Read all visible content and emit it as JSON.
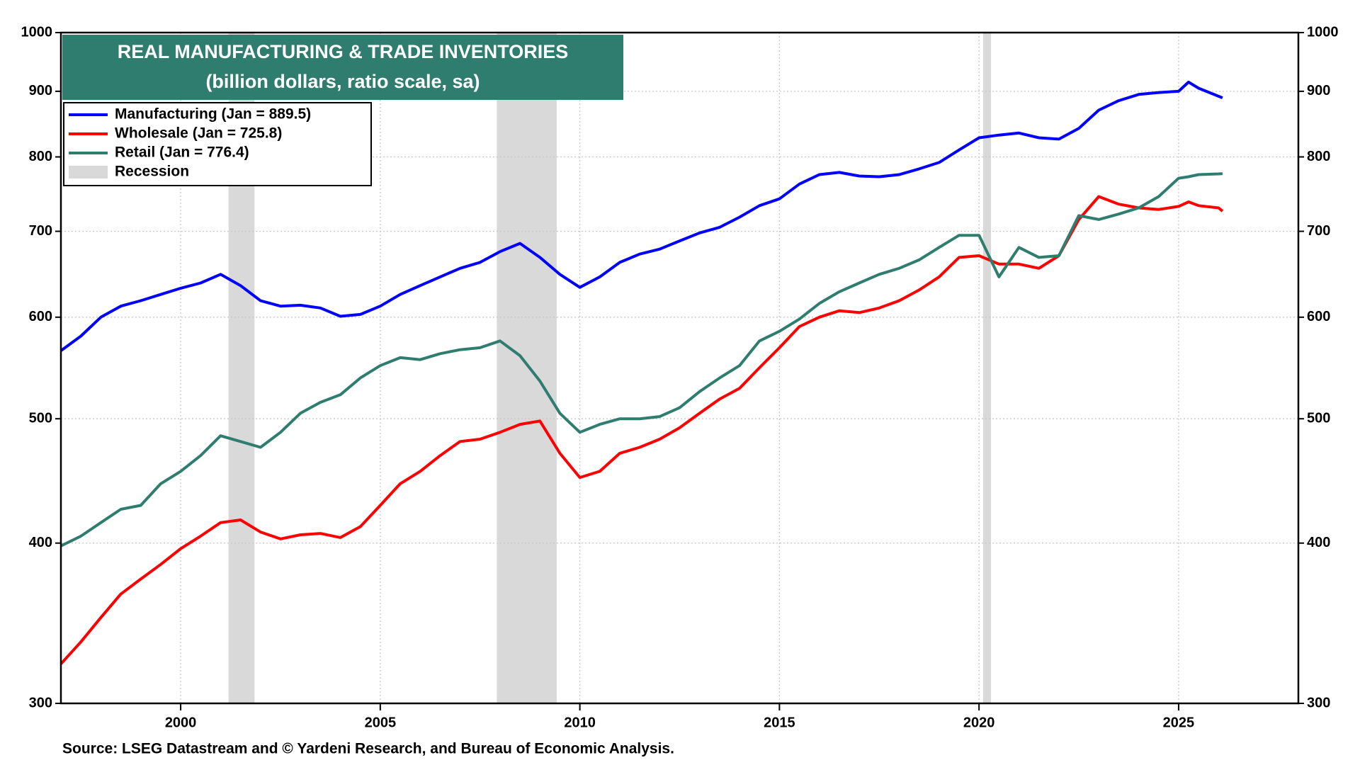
{
  "chart_data": {
    "type": "line",
    "title": "REAL MANUFACTURING & TRADE INVENTORIES",
    "subtitle": "(billion dollars, ratio scale, sa)",
    "source": "Source: LSEG Datastream and © Yardeni Research, and Bureau of Economic Analysis.",
    "log_scale": true,
    "grid": true,
    "xlim": [
      1997,
      2028
    ],
    "xticks": [
      2000,
      2005,
      2010,
      2015,
      2020,
      2025
    ],
    "ylim": [
      300,
      1000
    ],
    "yticks": [
      300,
      400,
      500,
      600,
      700,
      800,
      900,
      1000
    ],
    "y2lim": [
      300,
      1000
    ],
    "y2ticks": [
      300,
      400,
      500,
      600,
      700,
      800,
      900,
      1000
    ],
    "recession_name": "Recession",
    "recession_color": "#d9d9d9",
    "recessions": [
      [
        2001.2,
        2001.85
      ],
      [
        2007.92,
        2009.42
      ],
      [
        2020.1,
        2020.3
      ]
    ],
    "x": [
      1997,
      1997.5,
      1998,
      1998.5,
      1999,
      1999.5,
      2000,
      2000.5,
      2001,
      2001.5,
      2002,
      2002.5,
      2003,
      2003.5,
      2004,
      2004.5,
      2005,
      2005.5,
      2006,
      2006.5,
      2007,
      2007.5,
      2008,
      2008.5,
      2009,
      2009.5,
      2010,
      2010.5,
      2011,
      2011.5,
      2012,
      2012.5,
      2013,
      2013.5,
      2014,
      2014.5,
      2015,
      2015.5,
      2016,
      2016.5,
      2017,
      2017.5,
      2018,
      2018.5,
      2019,
      2019.5,
      2020,
      2020.5,
      2021,
      2021.5,
      2022,
      2022.5,
      2023,
      2023.5,
      2024,
      2024.5,
      2025,
      2025.25,
      2025.5,
      2026,
      2026.1
    ],
    "series": [
      {
        "name": "Manufacturing (Jan = 889.5)",
        "color": "#0000ff",
        "values": [
          565,
          580,
          600,
          612,
          618,
          625,
          632,
          638,
          648,
          635,
          618,
          612,
          613,
          610,
          601,
          603,
          612,
          625,
          635,
          645,
          655,
          662,
          675,
          685,
          668,
          648,
          633,
          645,
          662,
          672,
          678,
          688,
          698,
          705,
          718,
          733,
          742,
          762,
          775,
          778,
          773,
          772,
          775,
          783,
          792,
          810,
          828,
          832,
          835,
          828,
          826,
          842,
          870,
          885,
          895,
          898,
          900,
          915,
          905,
          892,
          889.5
        ]
      },
      {
        "name": "Wholesale (Jan = 725.8)",
        "color": "#ff0000",
        "values": [
          322,
          335,
          350,
          365,
          375,
          385,
          396,
          405,
          415,
          417,
          408,
          403,
          406,
          407,
          404,
          412,
          428,
          445,
          455,
          468,
          480,
          482,
          488,
          495,
          498,
          470,
          450,
          455,
          470,
          475,
          482,
          492,
          505,
          518,
          528,
          548,
          568,
          590,
          600,
          607,
          605,
          610,
          618,
          630,
          645,
          668,
          670,
          660,
          660,
          655,
          670,
          715,
          745,
          735,
          730,
          728,
          732,
          738,
          733,
          730,
          725.8
        ]
      },
      {
        "name": "Retail (Jan = 776.4)",
        "color": "#2e7d6e",
        "values": [
          398,
          405,
          415,
          425,
          428,
          445,
          455,
          468,
          485,
          480,
          475,
          488,
          505,
          515,
          522,
          538,
          550,
          558,
          556,
          562,
          566,
          568,
          575,
          560,
          535,
          505,
          488,
          495,
          500,
          500,
          502,
          510,
          525,
          538,
          550,
          575,
          585,
          598,
          615,
          628,
          638,
          648,
          655,
          665,
          680,
          695,
          695,
          645,
          680,
          668,
          670,
          720,
          715,
          722,
          730,
          745,
          770,
          772,
          775,
          776,
          776.4
        ]
      }
    ]
  }
}
